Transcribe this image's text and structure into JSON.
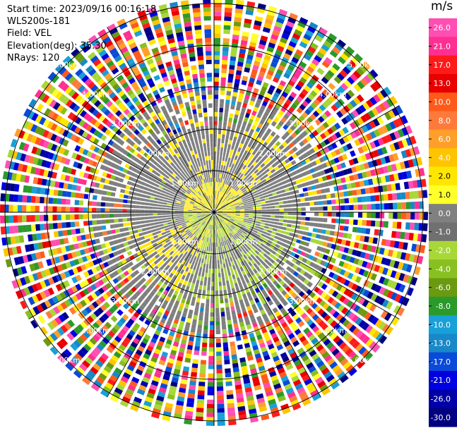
{
  "header": {
    "start_time": "Start time: 2023/09/16 00:16:18",
    "instrument": "WLS200s-181",
    "field": "Field: VEL",
    "elevation": "Elevation(deg): 35.30",
    "nrays": "NRays: 120"
  },
  "colorbar": {
    "unit": "m/s",
    "ticks": [
      "26.0",
      "21.0",
      "17.0",
      "13.0",
      "10.0",
      "8.0",
      "6.0",
      "4.0",
      "2.0",
      "1.0",
      "0.0",
      "-1.0",
      "-2.0",
      "-4.0",
      "-6.0",
      "-8.0",
      "-10.0",
      "-13.0",
      "-17.0",
      "-21.0",
      "-26.0",
      "-30.0"
    ],
    "colors": [
      "#ff4fb2",
      "#ff2f92",
      "#ff1a1a",
      "#e80000",
      "#ff5a1a",
      "#ff7a3a",
      "#ff9f2a",
      "#ffc400",
      "#ffe600",
      "#ffff2a",
      "#808080",
      "#707070",
      "#a8d838",
      "#88c020",
      "#6a9a10",
      "#2a9a2a",
      "#18a0d8",
      "#1888c8",
      "#0a4ad8",
      "#0000e0",
      "#0000a8",
      "#000080"
    ]
  },
  "range_rings": {
    "labels": [
      "1.00km",
      "2.00km",
      "3.00km",
      "4.00km",
      "5.00km"
    ]
  }
}
